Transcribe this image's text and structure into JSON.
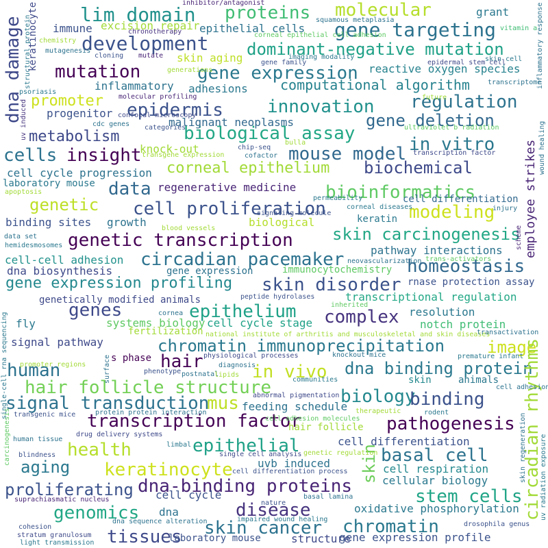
{
  "words": [
    {
      "text": "lim domain",
      "color": "#21918c"
    },
    {
      "text": "proteins",
      "color": "#3fbc73"
    },
    {
      "text": "molecular",
      "color": "#b5de2b"
    },
    {
      "text": "gene targeting",
      "color": "#2c728e"
    },
    {
      "text": "development",
      "color": "#3b528b"
    },
    {
      "text": "dominant-negative mutation",
      "color": "#1fa187"
    },
    {
      "text": "mutation",
      "color": "#440154"
    },
    {
      "text": "gene expression",
      "color": "#2a788e"
    },
    {
      "text": "dna damage",
      "color": "#3e4989"
    },
    {
      "text": "computational algorithm",
      "color": "#26828e"
    },
    {
      "text": "promoter",
      "color": "#cde11d"
    },
    {
      "text": "epidermis",
      "color": "#3b528b"
    },
    {
      "text": "innovation",
      "color": "#21918c"
    },
    {
      "text": "regulation",
      "color": "#2c728e"
    },
    {
      "text": "metabolism",
      "color": "#3e4989"
    },
    {
      "text": "biological assay",
      "color": "#22a785"
    },
    {
      "text": "gene deletion",
      "color": "#31688e"
    },
    {
      "text": "in vitro",
      "color": "#2a788e"
    },
    {
      "text": "cells",
      "color": "#2c728e"
    },
    {
      "text": "insight",
      "color": "#440154"
    },
    {
      "text": "mouse model",
      "color": "#31688e"
    },
    {
      "text": "biochemical",
      "color": "#3e4989"
    },
    {
      "text": "corneal epithelium",
      "color": "#a2da37"
    },
    {
      "text": "employee strikes",
      "color": "#482475"
    },
    {
      "text": "data",
      "color": "#31688e"
    },
    {
      "text": "bioinformatics",
      "color": "#5ec962"
    },
    {
      "text": "genetic",
      "color": "#bddf26"
    },
    {
      "text": "cell proliferation",
      "color": "#3b528b"
    },
    {
      "text": "modeling",
      "color": "#cde11d"
    },
    {
      "text": "skin carcinogenesis",
      "color": "#22a785"
    },
    {
      "text": "genetic transcription",
      "color": "#440154"
    },
    {
      "text": "circadian pacemaker",
      "color": "#2c728e"
    },
    {
      "text": "homeostasis",
      "color": "#31688e"
    },
    {
      "text": "gene expression profiling",
      "color": "#23888e"
    },
    {
      "text": "skin disorder",
      "color": "#3b528b"
    },
    {
      "text": "genes",
      "color": "#3e4989"
    },
    {
      "text": "epithelium",
      "color": "#1fa187"
    },
    {
      "text": "complex",
      "color": "#46337e"
    },
    {
      "text": "chromatin immunoprecipitation",
      "color": "#2a788e"
    },
    {
      "text": "image",
      "color": "#cde11d"
    },
    {
      "text": "hair",
      "color": "#440154"
    },
    {
      "text": "human",
      "color": "#2c728e"
    },
    {
      "text": "hair follicle structure",
      "color": "#73d056"
    },
    {
      "text": "in vivo",
      "color": "#c2df23"
    },
    {
      "text": "dna binding protein",
      "color": "#2a788e"
    },
    {
      "text": "signal transduction",
      "color": "#2c728e"
    },
    {
      "text": "mus",
      "color": "#bddf26"
    },
    {
      "text": "biology",
      "color": "#23888e"
    },
    {
      "text": "binding",
      "color": "#3b528b"
    },
    {
      "text": "transcription factor",
      "color": "#440154"
    },
    {
      "text": "pathogenesis",
      "color": "#440154"
    },
    {
      "text": "circadian rhythms",
      "color": "#a2da37"
    },
    {
      "text": "health",
      "color": "#b5de2b"
    },
    {
      "text": "epithelial",
      "color": "#1fa187"
    },
    {
      "text": "basal cell",
      "color": "#2c728e"
    },
    {
      "text": "skin",
      "color": "#6ccd5a"
    },
    {
      "text": "aging",
      "color": "#2a788e"
    },
    {
      "text": "keratinocyte",
      "color": "#cde11d"
    },
    {
      "text": "proliferating",
      "color": "#3b528b"
    },
    {
      "text": "dna-binding proteins",
      "color": "#482475"
    },
    {
      "text": "stem cells",
      "color": "#20a486"
    },
    {
      "text": "genomics",
      "color": "#22a785"
    },
    {
      "text": "disease",
      "color": "#46337e"
    },
    {
      "text": "skin cancer",
      "color": "#2c728e"
    },
    {
      "text": "chromatin",
      "color": "#2a788e"
    },
    {
      "text": "tissues",
      "color": "#3e4989"
    },
    {
      "text": "immune",
      "color": "#3b528b"
    },
    {
      "text": "excision repair",
      "color": "#a2da37"
    },
    {
      "text": "epithelial cells",
      "color": "#2c728e"
    },
    {
      "text": "grant",
      "color": "#2a788e"
    },
    {
      "text": "keratinocyte",
      "color": "#3e4989"
    },
    {
      "text": "skin aging",
      "color": "#bddf26"
    },
    {
      "text": "reactive oxygen species",
      "color": "#26828e"
    },
    {
      "text": "inflammatory",
      "color": "#2c728e"
    },
    {
      "text": "adhesions",
      "color": "#2a788e"
    },
    {
      "text": "progenitor",
      "color": "#3b528b"
    },
    {
      "text": "malignant neoplasms",
      "color": "#31688e"
    },
    {
      "text": "knock-out",
      "color": "#a2da37"
    },
    {
      "text": "cell cycle progression",
      "color": "#2c728e"
    },
    {
      "text": "laboratory mouse",
      "color": "#2a788e"
    },
    {
      "text": "regenerative medicine",
      "color": "#482475"
    },
    {
      "text": "cell differentiation",
      "color": "#31688e"
    },
    {
      "text": "binding sites",
      "color": "#3b528b"
    },
    {
      "text": "growth",
      "color": "#2c728e"
    },
    {
      "text": "biological",
      "color": "#b5de2b"
    },
    {
      "text": "keratin",
      "color": "#2a788e"
    },
    {
      "text": "pathway interactions",
      "color": "#2c728e"
    },
    {
      "text": "cell-cell adhesion",
      "color": "#21918c"
    },
    {
      "text": "dna biosynthesis",
      "color": "#3e4989"
    },
    {
      "text": "gene expression",
      "color": "#2c728e"
    },
    {
      "text": "immunocytochemistry",
      "color": "#5ec962"
    },
    {
      "text": "rnase protection assay",
      "color": "#3b528b"
    },
    {
      "text": "genetically modified animals",
      "color": "#3e4989"
    },
    {
      "text": "transcriptional regulation",
      "color": "#22a785"
    },
    {
      "text": "fly",
      "color": "#2a788e"
    },
    {
      "text": "systems biology",
      "color": "#5ec962"
    },
    {
      "text": "cell cycle stage",
      "color": "#1fa187"
    },
    {
      "text": "resolution",
      "color": "#2a788e"
    },
    {
      "text": "fertilization",
      "color": "#a2da37"
    },
    {
      "text": "notch protein",
      "color": "#3fbc73"
    },
    {
      "text": "signal pathway",
      "color": "#3e4989"
    },
    {
      "text": "s phase",
      "color": "#440154"
    },
    {
      "text": "feeding schedule",
      "color": "#2c728e"
    },
    {
      "text": "animals",
      "color": "#2a788e"
    },
    {
      "text": "skin",
      "color": "#23888e"
    },
    {
      "text": "cell differentiation",
      "color": "#3b528b"
    },
    {
      "text": "uvb induced",
      "color": "#2c728e"
    },
    {
      "text": "cell respiration",
      "color": "#23888e"
    },
    {
      "text": "cellular biology",
      "color": "#2a788e"
    },
    {
      "text": "cell cycle",
      "color": "#3b528b"
    },
    {
      "text": "dna",
      "color": "#2c728e"
    },
    {
      "text": "oxidative phosphorylation",
      "color": "#2a788e"
    },
    {
      "text": "laboratory mouse",
      "color": "#3b528b"
    },
    {
      "text": "structure",
      "color": "#3e4989"
    },
    {
      "text": "gene expression profile",
      "color": "#3b528b"
    },
    {
      "text": "hair follicle",
      "color": "#a2da37"
    },
    {
      "text": "inhibitor/antagonist",
      "color": "#482475"
    },
    {
      "text": "squamous metaplasia",
      "color": "#2c728e"
    },
    {
      "text": "chronotherapy",
      "color": "#46337e"
    },
    {
      "text": "corneal epithelial cell adhesion",
      "color": "#5ec962"
    },
    {
      "text": "vitamin a",
      "color": "#3fbc73"
    },
    {
      "text": "inflammatory response",
      "color": "#2c728e"
    },
    {
      "text": "chemistry",
      "color": "#a2da37"
    },
    {
      "text": "mutagenesis",
      "color": "#2c728e"
    },
    {
      "text": "cloning",
      "color": "#3b528b"
    },
    {
      "text": "mutate",
      "color": "#482475"
    },
    {
      "text": "skin cell",
      "color": "#2a788e"
    },
    {
      "text": "epidermal stem cell",
      "color": "#3e4989"
    },
    {
      "text": "gene family",
      "color": "#3b528b"
    },
    {
      "text": "imaging modality",
      "color": "#2a788e"
    },
    {
      "text": "generations",
      "color": "#a2da37"
    },
    {
      "text": "transcriptome",
      "color": "#2c728e"
    },
    {
      "text": "molecular profiling",
      "color": "#482475"
    },
    {
      "text": "future",
      "color": "#a2da37"
    },
    {
      "text": "confocal microscopy",
      "color": "#3e4989"
    },
    {
      "text": "cdc genes",
      "color": "#2c728e"
    },
    {
      "text": "categories",
      "color": "#3b528b"
    },
    {
      "text": "uv induced",
      "color": "#46337e"
    },
    {
      "text": "psoriasis",
      "color": "#2a788e"
    },
    {
      "text": "structural protein",
      "color": "#2a788e"
    },
    {
      "text": "ultraviolet b radiation",
      "color": "#5ec962"
    },
    {
      "text": "bulla",
      "color": "#a2da37"
    },
    {
      "text": "chip-seq",
      "color": "#3b528b"
    },
    {
      "text": "cofactor",
      "color": "#2c728e"
    },
    {
      "text": "transgene expression",
      "color": "#a2da37"
    },
    {
      "text": "wound healing",
      "color": "#2c728e"
    },
    {
      "text": "transcription factor",
      "color": "#3e4989"
    },
    {
      "text": "apoptosis",
      "color": "#a2da37"
    },
    {
      "text": "permeability",
      "color": "#2a788e"
    },
    {
      "text": "injury",
      "color": "#2c728e"
    },
    {
      "text": "signaling molecule",
      "color": "#3b528b"
    },
    {
      "text": "corneal diseases",
      "color": "#2a788e"
    },
    {
      "text": "blood vessels",
      "color": "#a2da37"
    },
    {
      "text": "data set",
      "color": "#2c728e"
    },
    {
      "text": "hemidesmosomes",
      "color": "#2a788e"
    },
    {
      "text": "neovascularization",
      "color": "#2c728e"
    },
    {
      "text": "trans-activators",
      "color": "#5ec962"
    },
    {
      "text": "scheme",
      "color": "#482475"
    },
    {
      "text": "peptide hydrolases",
      "color": "#3b528b"
    },
    {
      "text": "inherited",
      "color": "#5ec962"
    },
    {
      "text": "cornea",
      "color": "#2c728e"
    },
    {
      "text": "national institute of arthritis and musculoskeletal and skin diseases",
      "color": "#a2da37"
    },
    {
      "text": "transactivation",
      "color": "#2c728e"
    },
    {
      "text": "single-cell rna sequencing",
      "color": "#2a788e"
    },
    {
      "text": "promoter regions",
      "color": "#a2da37"
    },
    {
      "text": "surface",
      "color": "#2c728e"
    },
    {
      "text": "physiological processes",
      "color": "#3e4989"
    },
    {
      "text": "knockout mice",
      "color": "#2c728e"
    },
    {
      "text": "premature infant",
      "color": "#2a788e"
    },
    {
      "text": "diagnosis",
      "color": "#2c728e"
    },
    {
      "text": "phenotype",
      "color": "#3b528b"
    },
    {
      "text": "postnatal",
      "color": "#2c728e"
    },
    {
      "text": "lipids",
      "color": "#a2da37"
    },
    {
      "text": "communities",
      "color": "#2a788e"
    },
    {
      "text": "cell adhesion",
      "color": "#2c728e"
    },
    {
      "text": "abnormal pigmentation",
      "color": "#3e4989"
    },
    {
      "text": "transgenic mice",
      "color": "#3b528b"
    },
    {
      "text": "protein protein interaction",
      "color": "#2c728e"
    },
    {
      "text": "therapeutic",
      "color": "#a2da37"
    },
    {
      "text": "rodent",
      "color": "#2a788e"
    },
    {
      "text": "cell adhesion molecules",
      "color": "#5ec962"
    },
    {
      "text": "carcinogenesis",
      "color": "#5ec962"
    },
    {
      "text": "drug delivery systems",
      "color": "#3e4989"
    },
    {
      "text": "human tissue",
      "color": "#2c728e"
    },
    {
      "text": "limbal",
      "color": "#2a788e"
    },
    {
      "text": "blindness",
      "color": "#3b528b"
    },
    {
      "text": "single cell analysis",
      "color": "#3e4989"
    },
    {
      "text": "genetic regulation",
      "color": "#a2da37"
    },
    {
      "text": "cell differentiation process",
      "color": "#3b528b"
    },
    {
      "text": "skin regeneration",
      "color": "#2c728e"
    },
    {
      "text": "uv radiation exposure",
      "color": "#2a788e"
    },
    {
      "text": "suprachiasmatic nucleus",
      "color": "#482475"
    },
    {
      "text": "basal lamina",
      "color": "#2c728e"
    },
    {
      "text": "nature",
      "color": "#3b528b"
    },
    {
      "text": "impaired wound healing",
      "color": "#2a788e"
    },
    {
      "text": "dna sequence alteration",
      "color": "#2c728e"
    },
    {
      "text": "cohesion",
      "color": "#3b528b"
    },
    {
      "text": "stratum granulosum",
      "color": "#3e4989"
    },
    {
      "text": "light transmission",
      "color": "#2a788e"
    },
    {
      "text": "drosophila genus",
      "color": "#3b528b"
    }
  ]
}
